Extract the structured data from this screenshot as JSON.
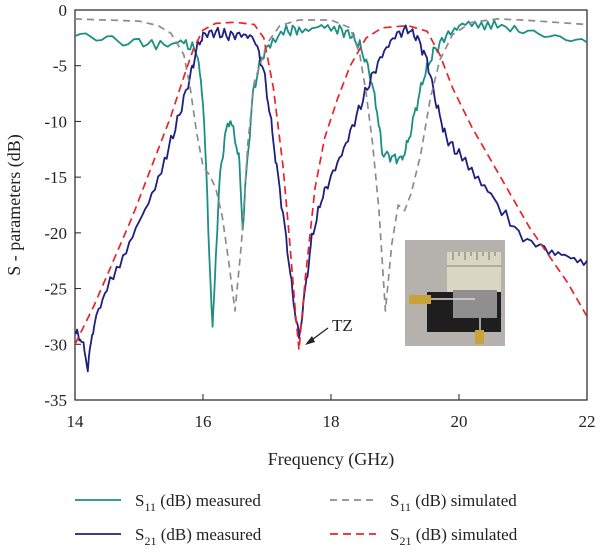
{
  "chart_data": {
    "type": "line",
    "xlabel": "Frequency (GHz)",
    "ylabel": "S - parameters (dB)",
    "xlim": [
      14,
      22
    ],
    "ylim": [
      -35,
      0
    ],
    "xticks": [
      "14",
      "16",
      "18",
      "20",
      "22"
    ],
    "yticks": [
      "0",
      "-5",
      "-10",
      "-15",
      "-20",
      "-25",
      "-30",
      "-35"
    ],
    "grid": false,
    "legend_position": "bottom",
    "annotations": [
      {
        "text": "TZ",
        "x": 17.5,
        "y": -30
      }
    ],
    "series": [
      {
        "name": "S11 (dB) measured",
        "label_main": "S",
        "label_sub": "11",
        "label_rest": " (dB) measured",
        "color": "#1a8f82",
        "dash": "solid",
        "points": [
          [
            14.0,
            -2.2
          ],
          [
            14.5,
            -2.6
          ],
          [
            15.0,
            -3.0
          ],
          [
            15.4,
            -3.1
          ],
          [
            15.7,
            -3.0
          ],
          [
            15.9,
            -3.6
          ],
          [
            16.0,
            -8.0
          ],
          [
            16.05,
            -14.5
          ],
          [
            16.1,
            -22.0
          ],
          [
            16.15,
            -28.9
          ],
          [
            16.2,
            -22.0
          ],
          [
            16.27,
            -14.5
          ],
          [
            16.35,
            -11.2
          ],
          [
            16.42,
            -9.7
          ],
          [
            16.5,
            -11.5
          ],
          [
            16.56,
            -13.2
          ],
          [
            16.62,
            -19.5
          ],
          [
            16.68,
            -14.5
          ],
          [
            16.78,
            -7.5
          ],
          [
            16.9,
            -4.5
          ],
          [
            17.05,
            -2.9
          ],
          [
            17.3,
            -1.9
          ],
          [
            17.5,
            -1.7
          ],
          [
            17.8,
            -1.6
          ],
          [
            18.1,
            -1.7
          ],
          [
            18.3,
            -2.2
          ],
          [
            18.45,
            -3.2
          ],
          [
            18.6,
            -5.5
          ],
          [
            18.72,
            -9.0
          ],
          [
            18.8,
            -12.8
          ],
          [
            18.95,
            -13.2
          ],
          [
            19.1,
            -13.4
          ],
          [
            19.2,
            -12.0
          ],
          [
            19.32,
            -9.0
          ],
          [
            19.45,
            -6.0
          ],
          [
            19.6,
            -3.8
          ],
          [
            19.8,
            -2.3
          ],
          [
            20.0,
            -1.5
          ],
          [
            20.3,
            -1.2
          ],
          [
            20.6,
            -1.4
          ],
          [
            21.0,
            -1.9
          ],
          [
            21.5,
            -2.4
          ],
          [
            22.0,
            -2.9
          ]
        ]
      },
      {
        "name": "S21 (dB) measured",
        "label_main": "S",
        "label_sub": "21",
        "label_rest": " (dB) measured",
        "color": "#1f1f80",
        "dash": "solid",
        "points": [
          [
            14.0,
            -29.0
          ],
          [
            14.1,
            -29.5
          ],
          [
            14.2,
            -32.0
          ],
          [
            14.3,
            -28.0
          ],
          [
            14.5,
            -25.0
          ],
          [
            14.8,
            -21.5
          ],
          [
            15.1,
            -18.0
          ],
          [
            15.4,
            -13.5
          ],
          [
            15.6,
            -10.0
          ],
          [
            15.8,
            -6.0
          ],
          [
            15.9,
            -3.5
          ],
          [
            16.0,
            -2.2
          ],
          [
            16.2,
            -2.0
          ],
          [
            16.4,
            -2.3
          ],
          [
            16.6,
            -2.2
          ],
          [
            16.8,
            -2.5
          ],
          [
            16.95,
            -5.5
          ],
          [
            17.05,
            -9.5
          ],
          [
            17.15,
            -14.0
          ],
          [
            17.3,
            -20.5
          ],
          [
            17.4,
            -25.5
          ],
          [
            17.5,
            -29.5
          ],
          [
            17.6,
            -25.0
          ],
          [
            17.7,
            -20.5
          ],
          [
            17.85,
            -17.0
          ],
          [
            18.0,
            -15.0
          ],
          [
            18.2,
            -12.5
          ],
          [
            18.4,
            -9.5
          ],
          [
            18.6,
            -6.5
          ],
          [
            18.8,
            -4.0
          ],
          [
            19.0,
            -2.3
          ],
          [
            19.2,
            -1.7
          ],
          [
            19.35,
            -2.5
          ],
          [
            19.5,
            -4.5
          ],
          [
            19.65,
            -8.5
          ],
          [
            19.8,
            -11.5
          ],
          [
            20.0,
            -13.0
          ],
          [
            20.3,
            -15.0
          ],
          [
            20.6,
            -17.5
          ],
          [
            21.0,
            -20.5
          ],
          [
            21.4,
            -21.5
          ],
          [
            21.7,
            -22.3
          ],
          [
            22.0,
            -22.5
          ]
        ]
      },
      {
        "name": "S11 (dB) simulated",
        "label_main": "S",
        "label_sub": "11",
        "label_rest": " (dB) simulated",
        "color": "#8c8c8c",
        "dash": "7,5",
        "points": [
          [
            14.0,
            -0.8
          ],
          [
            14.5,
            -0.9
          ],
          [
            15.0,
            -1.0
          ],
          [
            15.3,
            -1.4
          ],
          [
            15.5,
            -2.1
          ],
          [
            15.7,
            -4.0
          ],
          [
            15.8,
            -7.0
          ],
          [
            15.9,
            -11.0
          ],
          [
            16.0,
            -14.0
          ],
          [
            16.1,
            -14.8
          ],
          [
            16.2,
            -16.0
          ],
          [
            16.3,
            -18.5
          ],
          [
            16.4,
            -22.5
          ],
          [
            16.5,
            -27.0
          ],
          [
            16.6,
            -21.0
          ],
          [
            16.7,
            -12.0
          ],
          [
            16.8,
            -6.5
          ],
          [
            17.0,
            -3.0
          ],
          [
            17.2,
            -1.4
          ],
          [
            17.5,
            -0.9
          ],
          [
            18.0,
            -0.9
          ],
          [
            18.3,
            -1.6
          ],
          [
            18.45,
            -4.0
          ],
          [
            18.55,
            -7.5
          ],
          [
            18.65,
            -12.0
          ],
          [
            18.75,
            -18.0
          ],
          [
            18.85,
            -27.0
          ],
          [
            18.95,
            -21.0
          ],
          [
            19.05,
            -17.5
          ],
          [
            19.15,
            -18.0
          ],
          [
            19.25,
            -16.5
          ],
          [
            19.4,
            -13.0
          ],
          [
            19.55,
            -8.0
          ],
          [
            19.7,
            -4.5
          ],
          [
            19.9,
            -2.2
          ],
          [
            20.2,
            -1.1
          ],
          [
            20.6,
            -0.8
          ],
          [
            21.0,
            -0.9
          ],
          [
            22.0,
            -1.3
          ]
        ]
      },
      {
        "name": "S21 (dB) simulated",
        "label_main": "S",
        "label_sub": "21",
        "label_rest": " (dB) simulated",
        "color": "#e8242a",
        "dash": "8,5",
        "points": [
          [
            14.0,
            -30.0
          ],
          [
            14.3,
            -26.5
          ],
          [
            14.6,
            -22.5
          ],
          [
            14.9,
            -18.5
          ],
          [
            15.2,
            -14.0
          ],
          [
            15.5,
            -9.5
          ],
          [
            15.7,
            -6.0
          ],
          [
            15.85,
            -3.5
          ],
          [
            16.0,
            -1.8
          ],
          [
            16.2,
            -1.2
          ],
          [
            16.5,
            -1.1
          ],
          [
            16.8,
            -1.3
          ],
          [
            16.95,
            -2.5
          ],
          [
            17.1,
            -7.0
          ],
          [
            17.25,
            -14.0
          ],
          [
            17.35,
            -20.5
          ],
          [
            17.45,
            -27.5
          ],
          [
            17.5,
            -30.5
          ],
          [
            17.6,
            -24.0
          ],
          [
            17.75,
            -16.0
          ],
          [
            17.9,
            -11.5
          ],
          [
            18.1,
            -8.0
          ],
          [
            18.3,
            -5.0
          ],
          [
            18.55,
            -2.5
          ],
          [
            18.8,
            -1.6
          ],
          [
            19.2,
            -1.4
          ],
          [
            19.5,
            -1.9
          ],
          [
            19.7,
            -4.0
          ],
          [
            19.9,
            -7.0
          ],
          [
            20.2,
            -10.5
          ],
          [
            20.5,
            -13.5
          ],
          [
            20.8,
            -16.5
          ],
          [
            21.1,
            -19.5
          ],
          [
            21.4,
            -22.0
          ],
          [
            21.7,
            -24.5
          ],
          [
            22.0,
            -27.5
          ]
        ]
      }
    ]
  }
}
